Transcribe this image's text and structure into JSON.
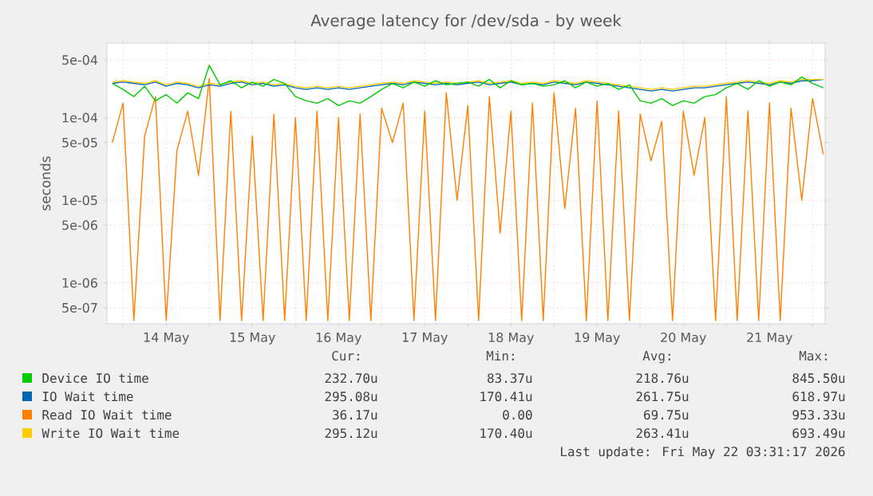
{
  "chart_data": {
    "type": "line",
    "title": "Average latency for /dev/sda - by week",
    "ylabel": "seconds",
    "log": "y",
    "grid": true,
    "legend": "bottom",
    "ylim": [
      3.2e-07,
      0.0008
    ],
    "yticks": [
      {
        "value": 5e-07,
        "label": "5e-07"
      },
      {
        "value": 1e-06,
        "label": "1e-06"
      },
      {
        "value": 5e-06,
        "label": "5e-06"
      },
      {
        "value": 1e-05,
        "label": "1e-05"
      },
      {
        "value": 5e-05,
        "label": "5e-05"
      },
      {
        "value": 0.0001,
        "label": "1e-04"
      },
      {
        "value": 0.0005,
        "label": "5e-04"
      }
    ],
    "xlim": [
      "2026-05-13T19:30",
      "2026-05-22T03:30"
    ],
    "xticks": [
      {
        "value": "2026-05-14T00:00",
        "label": null
      },
      {
        "value": "2026-05-14T12:00",
        "label": "14 May"
      },
      {
        "value": "2026-05-15T00:00",
        "label": null
      },
      {
        "value": "2026-05-15T12:00",
        "label": "15 May"
      },
      {
        "value": "2026-05-16T00:00",
        "label": null
      },
      {
        "value": "2026-05-16T12:00",
        "label": "16 May"
      },
      {
        "value": "2026-05-17T00:00",
        "label": null
      },
      {
        "value": "2026-05-17T12:00",
        "label": "17 May"
      },
      {
        "value": "2026-05-18T00:00",
        "label": null
      },
      {
        "value": "2026-05-18T12:00",
        "label": "18 May"
      },
      {
        "value": "2026-05-19T00:00",
        "label": null
      },
      {
        "value": "2026-05-19T12:00",
        "label": "19 May"
      },
      {
        "value": "2026-05-20T00:00",
        "label": null
      },
      {
        "value": "2026-05-20T12:00",
        "label": "20 May"
      },
      {
        "value": "2026-05-21T00:00",
        "label": null
      },
      {
        "value": "2026-05-21T12:00",
        "label": "21 May"
      },
      {
        "value": "2026-05-22T00:00",
        "label": null
      }
    ],
    "x": [
      "2026-05-13T21:00",
      "2026-05-14T00:00",
      "2026-05-14T03:00",
      "2026-05-14T06:00",
      "2026-05-14T09:00",
      "2026-05-14T12:00",
      "2026-05-14T15:00",
      "2026-05-14T18:00",
      "2026-05-14T21:00",
      "2026-05-15T00:00",
      "2026-05-15T03:00",
      "2026-05-15T06:00",
      "2026-05-15T09:00",
      "2026-05-15T12:00",
      "2026-05-15T15:00",
      "2026-05-15T18:00",
      "2026-05-15T21:00",
      "2026-05-16T00:00",
      "2026-05-16T03:00",
      "2026-05-16T06:00",
      "2026-05-16T09:00",
      "2026-05-16T12:00",
      "2026-05-16T15:00",
      "2026-05-16T18:00",
      "2026-05-16T21:00",
      "2026-05-17T00:00",
      "2026-05-17T03:00",
      "2026-05-17T06:00",
      "2026-05-17T09:00",
      "2026-05-17T12:00",
      "2026-05-17T15:00",
      "2026-05-17T18:00",
      "2026-05-17T21:00",
      "2026-05-18T00:00",
      "2026-05-18T03:00",
      "2026-05-18T06:00",
      "2026-05-18T09:00",
      "2026-05-18T12:00",
      "2026-05-18T15:00",
      "2026-05-18T18:00",
      "2026-05-18T21:00",
      "2026-05-19T00:00",
      "2026-05-19T03:00",
      "2026-05-19T06:00",
      "2026-05-19T09:00",
      "2026-05-19T12:00",
      "2026-05-19T15:00",
      "2026-05-19T18:00",
      "2026-05-19T21:00",
      "2026-05-20T00:00",
      "2026-05-20T03:00",
      "2026-05-20T06:00",
      "2026-05-20T09:00",
      "2026-05-20T12:00",
      "2026-05-20T15:00",
      "2026-05-20T18:00",
      "2026-05-20T21:00",
      "2026-05-21T00:00",
      "2026-05-21T03:00",
      "2026-05-21T06:00",
      "2026-05-21T09:00",
      "2026-05-21T12:00",
      "2026-05-21T15:00",
      "2026-05-21T18:00",
      "2026-05-21T21:00",
      "2026-05-22T00:00",
      "2026-05-22T03:00"
    ],
    "series": [
      {
        "name": "Read IO Wait time",
        "color": "#ff8000",
        "values": [
          5e-05,
          0.00015,
          3.5e-07,
          6e-05,
          0.00018,
          3.5e-07,
          4e-05,
          0.00012,
          2e-05,
          0.0003,
          3.5e-07,
          0.00012,
          3.5e-07,
          6e-05,
          3.5e-07,
          0.00011,
          3.5e-07,
          0.0001,
          3.5e-07,
          0.00012,
          3.5e-07,
          0.0001,
          3.5e-07,
          0.00011,
          3.5e-07,
          0.00013,
          5e-05,
          0.00015,
          3.5e-07,
          0.00012,
          3.5e-07,
          0.0002,
          1e-05,
          0.00014,
          3.5e-07,
          0.00018,
          4e-06,
          0.00012,
          3.5e-07,
          0.00015,
          3.5e-07,
          0.0002,
          8e-06,
          0.00013,
          3.5e-07,
          0.00016,
          3.5e-07,
          0.00012,
          3.5e-07,
          0.00011,
          3e-05,
          9e-05,
          3.5e-07,
          0.00012,
          2e-05,
          0.0001,
          3.5e-07,
          0.00018,
          3.5e-07,
          0.00012,
          3.5e-07,
          0.00015,
          3.5e-07,
          0.00013,
          1e-05,
          0.00017,
          3.6e-05
        ]
      },
      {
        "name": "IO Wait time",
        "color": "#0066b3",
        "values": [
          0.00026,
          0.00027,
          0.00026,
          0.00025,
          0.00027,
          0.00024,
          0.00026,
          0.00025,
          0.00023,
          0.00025,
          0.00024,
          0.00026,
          0.00027,
          0.00025,
          0.00026,
          0.00024,
          0.00025,
          0.00023,
          0.00022,
          0.00023,
          0.00022,
          0.00023,
          0.00022,
          0.00023,
          0.00024,
          0.00025,
          0.00026,
          0.00025,
          0.00027,
          0.00026,
          0.00025,
          0.00026,
          0.00025,
          0.00026,
          0.00027,
          0.00025,
          0.00026,
          0.00027,
          0.00025,
          0.00026,
          0.00025,
          0.00027,
          0.00026,
          0.00025,
          0.00027,
          0.00026,
          0.00025,
          0.00024,
          0.00023,
          0.00022,
          0.00021,
          0.00022,
          0.00021,
          0.00022,
          0.00023,
          0.00023,
          0.00024,
          0.00025,
          0.00026,
          0.00027,
          0.00026,
          0.00025,
          0.00027,
          0.00026,
          0.00028,
          0.00028,
          0.00029
        ]
      },
      {
        "name": "Write IO Wait time",
        "color": "#ffcc00",
        "values": [
          0.00027,
          0.00028,
          0.00027,
          0.00026,
          0.00028,
          0.00025,
          0.00027,
          0.00026,
          0.00024,
          0.00026,
          0.00025,
          0.00027,
          0.00028,
          0.00026,
          0.00027,
          0.00025,
          0.00026,
          0.00024,
          0.00023,
          0.00024,
          0.00023,
          0.00024,
          0.00023,
          0.00024,
          0.00025,
          0.00026,
          0.00027,
          0.00026,
          0.00028,
          0.00027,
          0.00026,
          0.00027,
          0.00026,
          0.00027,
          0.00028,
          0.00026,
          0.00027,
          0.00028,
          0.00026,
          0.00027,
          0.00026,
          0.00028,
          0.00027,
          0.00026,
          0.00028,
          0.00027,
          0.00026,
          0.00025,
          0.00024,
          0.00023,
          0.00022,
          0.00023,
          0.00022,
          0.00023,
          0.00024,
          0.00024,
          0.00025,
          0.00026,
          0.00027,
          0.00028,
          0.00027,
          0.00026,
          0.00028,
          0.00027,
          0.00029,
          0.00029,
          0.00029
        ]
      },
      {
        "name": "Device IO time",
        "color": "#00cc00",
        "values": [
          0.00026,
          0.00022,
          0.00018,
          0.00024,
          0.00016,
          0.00019,
          0.00015,
          0.0002,
          0.00017,
          0.00043,
          0.00025,
          0.00028,
          0.00023,
          0.00027,
          0.00024,
          0.00029,
          0.00026,
          0.00018,
          0.00016,
          0.00015,
          0.00017,
          0.00014,
          0.00016,
          0.00015,
          0.00018,
          0.00022,
          0.00026,
          0.00023,
          0.00027,
          0.00024,
          0.00028,
          0.00025,
          0.00026,
          0.00027,
          0.00024,
          0.00029,
          0.00023,
          0.00028,
          0.00025,
          0.00026,
          0.00024,
          0.00025,
          0.00028,
          0.00023,
          0.00027,
          0.00024,
          0.00026,
          0.00022,
          0.00025,
          0.00016,
          0.00015,
          0.00017,
          0.00014,
          0.00016,
          0.00015,
          0.00018,
          0.00019,
          0.00023,
          0.00026,
          0.00022,
          0.00028,
          0.00024,
          0.00027,
          0.00025,
          0.00031,
          0.00026,
          0.00023
        ]
      }
    ],
    "annotations": [
      "Cur:",
      "Min:",
      "Avg:",
      "Max:",
      "232.70u",
      "83.37u",
      "218.76u",
      "845.50u",
      "295.08u",
      "170.41u",
      "261.75u",
      "618.97u",
      "36.17u",
      "0.00",
      "69.75u",
      "953.33u",
      "295.12u",
      "170.40u",
      "263.41u",
      "693.49u",
      "Last update: Fri May 22 03:31:17 2026"
    ]
  }
}
